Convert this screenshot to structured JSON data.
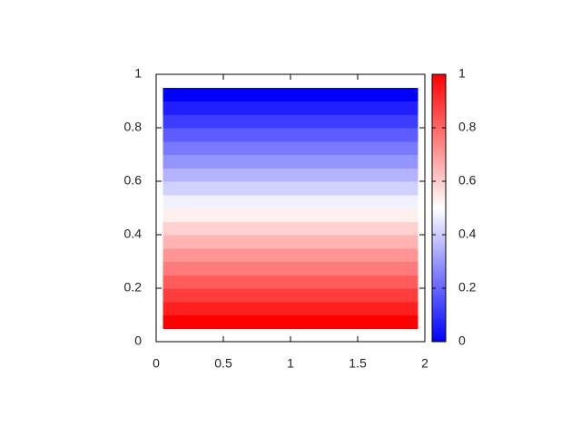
{
  "chart_data": {
    "type": "heatmap",
    "x_extent": [
      0.05,
      1.95
    ],
    "y_edges": [
      0.05,
      0.1,
      0.15,
      0.2,
      0.25,
      0.3,
      0.35,
      0.4,
      0.45,
      0.5,
      0.55,
      0.6,
      0.65,
      0.7,
      0.75,
      0.8,
      0.85,
      0.9,
      0.95
    ],
    "values": [
      1,
      0.94,
      0.88,
      0.82,
      0.76,
      0.71,
      0.65,
      0.59,
      0.53,
      0.47,
      0.41,
      0.35,
      0.29,
      0.24,
      0.18,
      0.12,
      0.06,
      0
    ],
    "colormap": [
      "#0000ff",
      "#ffffff",
      "#ff0000"
    ],
    "xlim": [
      0,
      2
    ],
    "xticks": [
      0,
      0.5,
      1,
      1.5,
      2
    ],
    "ylim": [
      0,
      1
    ],
    "yticks": [
      0,
      0.2,
      0.4,
      0.6,
      0.8,
      1
    ],
    "clim": [
      0,
      1
    ],
    "cticks": [
      0,
      0.2,
      0.4,
      0.6,
      0.8,
      1
    ]
  }
}
